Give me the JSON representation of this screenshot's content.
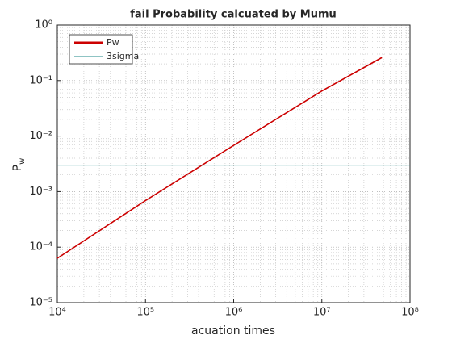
{
  "chart_data": {
    "type": "line",
    "title": "fail Probability calcuated by Mumu",
    "xlabel": "acuation times",
    "ylabel": {
      "text": "P",
      "subscript": "w"
    },
    "xscale": "log",
    "yscale": "log",
    "grid": true,
    "legend": "upper left",
    "xlim": [
      10000,
      100000000
    ],
    "xticks": [
      {
        "value": 10000,
        "label": "10⁴"
      },
      {
        "value": 100000,
        "label": "10⁵"
      },
      {
        "value": 1000000,
        "label": "10⁶"
      },
      {
        "value": 10000000,
        "label": "10⁷"
      },
      {
        "value": 100000000,
        "label": "10⁸"
      }
    ],
    "ylim": [
      1e-05,
      1
    ],
    "yticks": [
      {
        "value": 1e-05,
        "label": "10⁻⁵"
      },
      {
        "value": 0.0001,
        "label": "10⁻⁴"
      },
      {
        "value": 0.001,
        "label": "10⁻³"
      },
      {
        "value": 0.01,
        "label": "10⁻²"
      },
      {
        "value": 0.1,
        "label": "10⁻¹"
      },
      {
        "value": 1,
        "label": "10⁰"
      }
    ],
    "series": [
      {
        "name": "Pw",
        "color": "#cc0000",
        "x": [
          10000,
          100000,
          1000000,
          10000000,
          48000000
        ],
        "values": [
          6.3e-05,
          0.00069,
          0.0068,
          0.065,
          0.26
        ]
      },
      {
        "name": "3sigma",
        "color": "#1f8a8a",
        "x": [
          10000,
          100000000
        ],
        "values": [
          0.003,
          0.003
        ]
      }
    ]
  }
}
